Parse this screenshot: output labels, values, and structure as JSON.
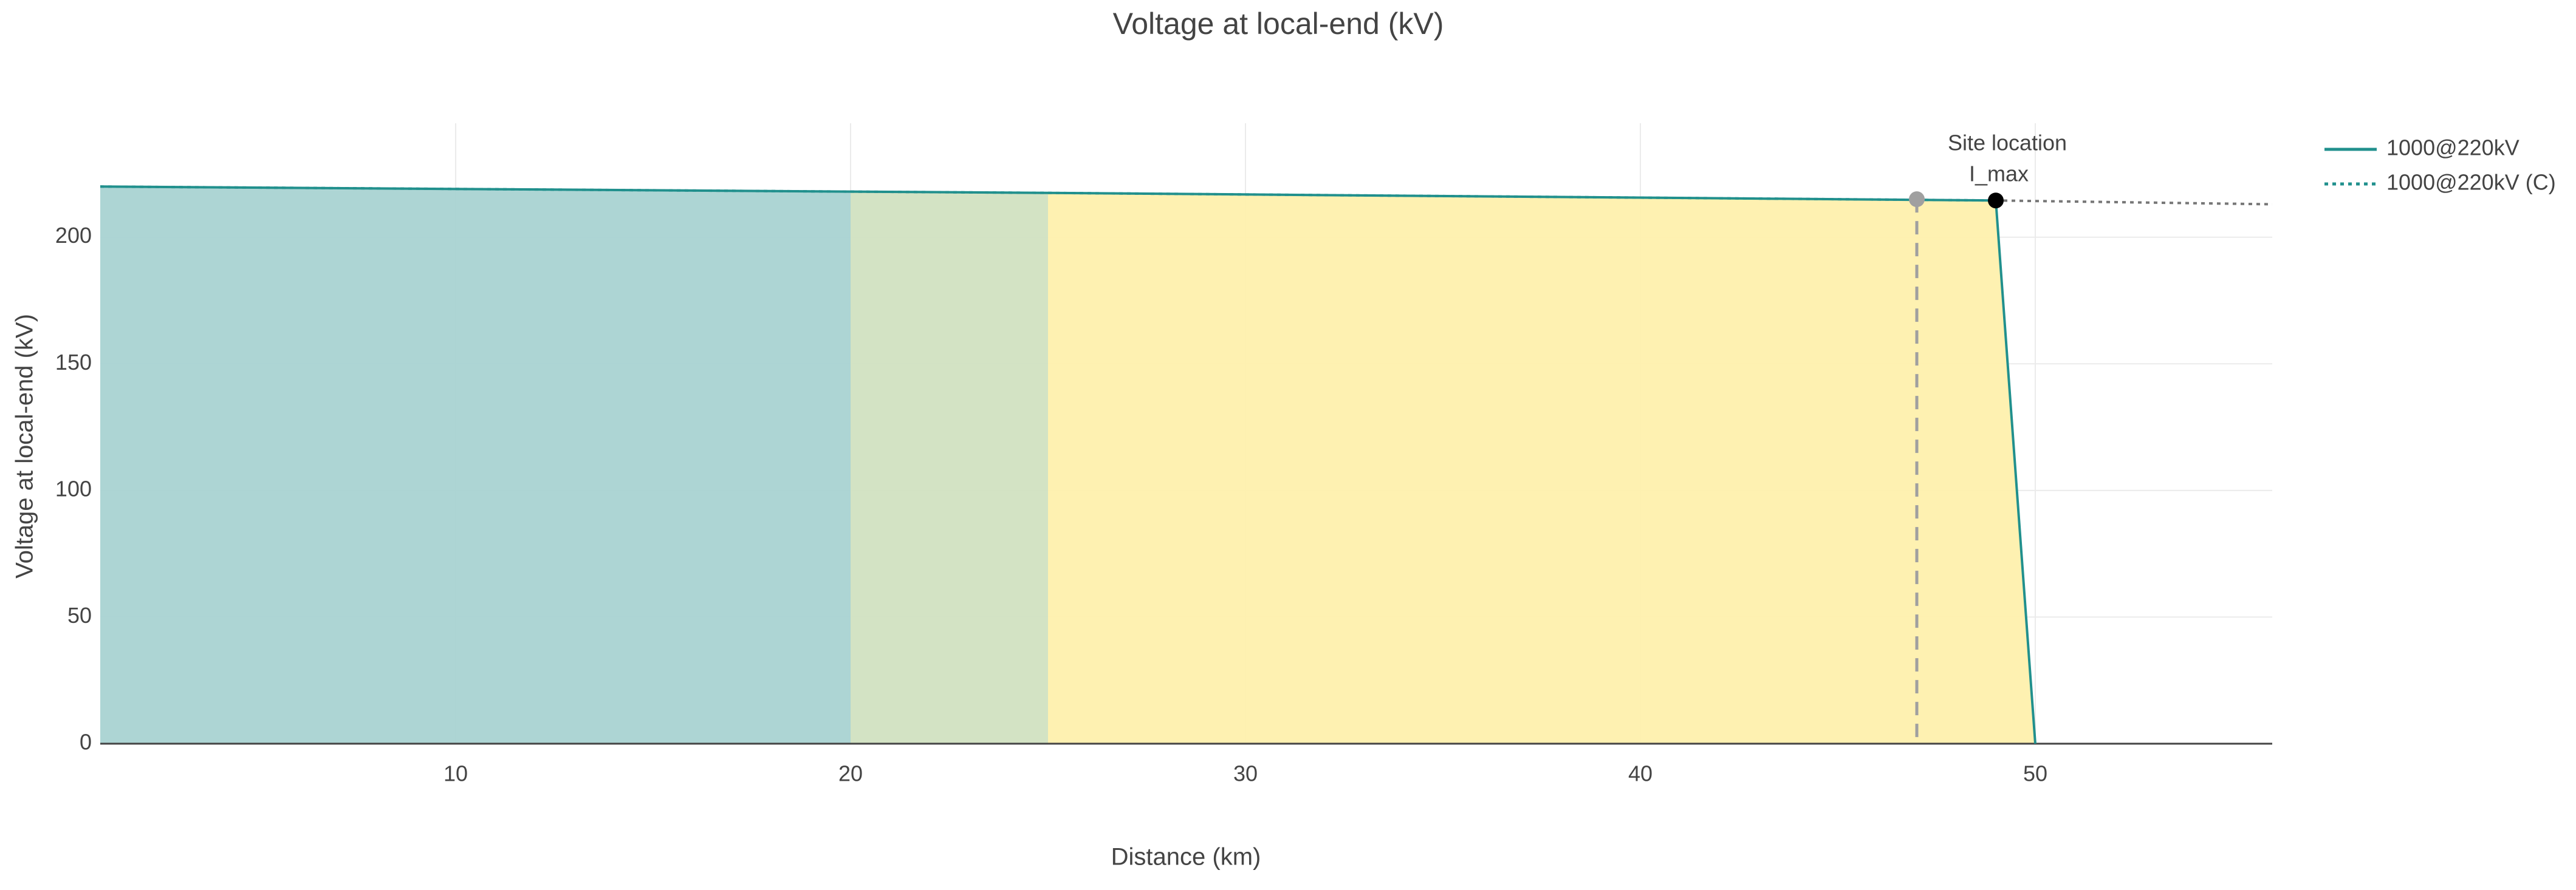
{
  "chart_data": {
    "type": "area-line",
    "title": "Voltage at local-end (kV)",
    "x_label": "Distance (km)",
    "y_label": "Voltage at local-end (kV)",
    "xlim": [
      1,
      56
    ],
    "ylim": [
      0,
      245
    ],
    "xticks": [
      10,
      20,
      30,
      40,
      50
    ],
    "yticks": [
      0,
      50,
      100,
      150,
      200
    ],
    "grid": true,
    "legend": "right",
    "series": [
      {
        "name": "1000@220kV",
        "color": "#21908d",
        "dash": "solid",
        "x": [
          1,
          20,
          25,
          49,
          50
        ],
        "values": [
          220,
          218,
          217.5,
          214.5,
          0
        ]
      },
      {
        "name": "1000@220kV (C)",
        "color": "#21908d",
        "dash": "dot",
        "x": [
          1,
          20,
          25,
          49
        ],
        "values": [
          220,
          218,
          217.5,
          214.5
        ]
      },
      {
        "color": "#777777",
        "dash": "dot",
        "x": [
          49,
          56
        ],
        "values": [
          214.5,
          213
        ]
      }
    ],
    "regions": [
      {
        "x0": 1,
        "x1": 20,
        "color": "#a9d3d2"
      },
      {
        "x0": 20,
        "x1": 25,
        "color": "#d1e1c1"
      },
      {
        "x0": 25,
        "x1": 50,
        "color": "#fef0ad"
      }
    ],
    "points": [
      {
        "label": "Site location",
        "x": 47,
        "value": 215,
        "color": "#a0a0a0",
        "dropline": true
      },
      {
        "label": "I_max",
        "x": 49,
        "value": 214.5,
        "color": "#000000"
      }
    ]
  }
}
